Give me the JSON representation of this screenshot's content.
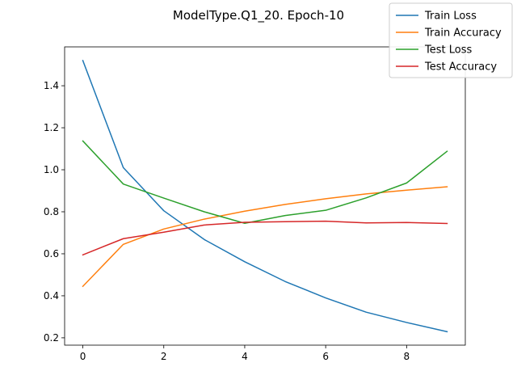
{
  "chart_data": {
    "type": "line",
    "title": "ModelType.Q1_20. Epoch-10",
    "xlabel": "",
    "ylabel": "",
    "x": [
      0,
      1,
      2,
      3,
      4,
      5,
      6,
      7,
      8,
      9
    ],
    "xlim": [
      -0.45,
      9.45
    ],
    "ylim": [
      0.165,
      1.585
    ],
    "xticks": [
      0,
      2,
      4,
      6,
      8
    ],
    "yticks": [
      0.2,
      0.4,
      0.6,
      0.8,
      1.0,
      1.2,
      1.4
    ],
    "ytick_labels": [
      "0.2",
      "0.4",
      "0.6",
      "0.8",
      "1.0",
      "1.2",
      "1.4"
    ],
    "grid": false,
    "legend_position": "top-right",
    "series": [
      {
        "name": "Train Loss",
        "color": "#1f77b4",
        "values": [
          1.52,
          1.01,
          0.805,
          0.668,
          0.562,
          0.468,
          0.39,
          0.322,
          0.273,
          0.229
        ]
      },
      {
        "name": "Train Accuracy",
        "color": "#ff7f0e",
        "values": [
          0.445,
          0.645,
          0.718,
          0.765,
          0.803,
          0.835,
          0.862,
          0.885,
          0.903,
          0.919
        ]
      },
      {
        "name": "Test Loss",
        "color": "#2ca02c",
        "values": [
          1.137,
          0.932,
          0.865,
          0.8,
          0.745,
          0.782,
          0.807,
          0.866,
          0.937,
          1.088
        ]
      },
      {
        "name": "Test Accuracy",
        "color": "#d62728",
        "values": [
          0.595,
          0.672,
          0.703,
          0.737,
          0.75,
          0.753,
          0.755,
          0.747,
          0.749,
          0.744
        ]
      }
    ]
  }
}
